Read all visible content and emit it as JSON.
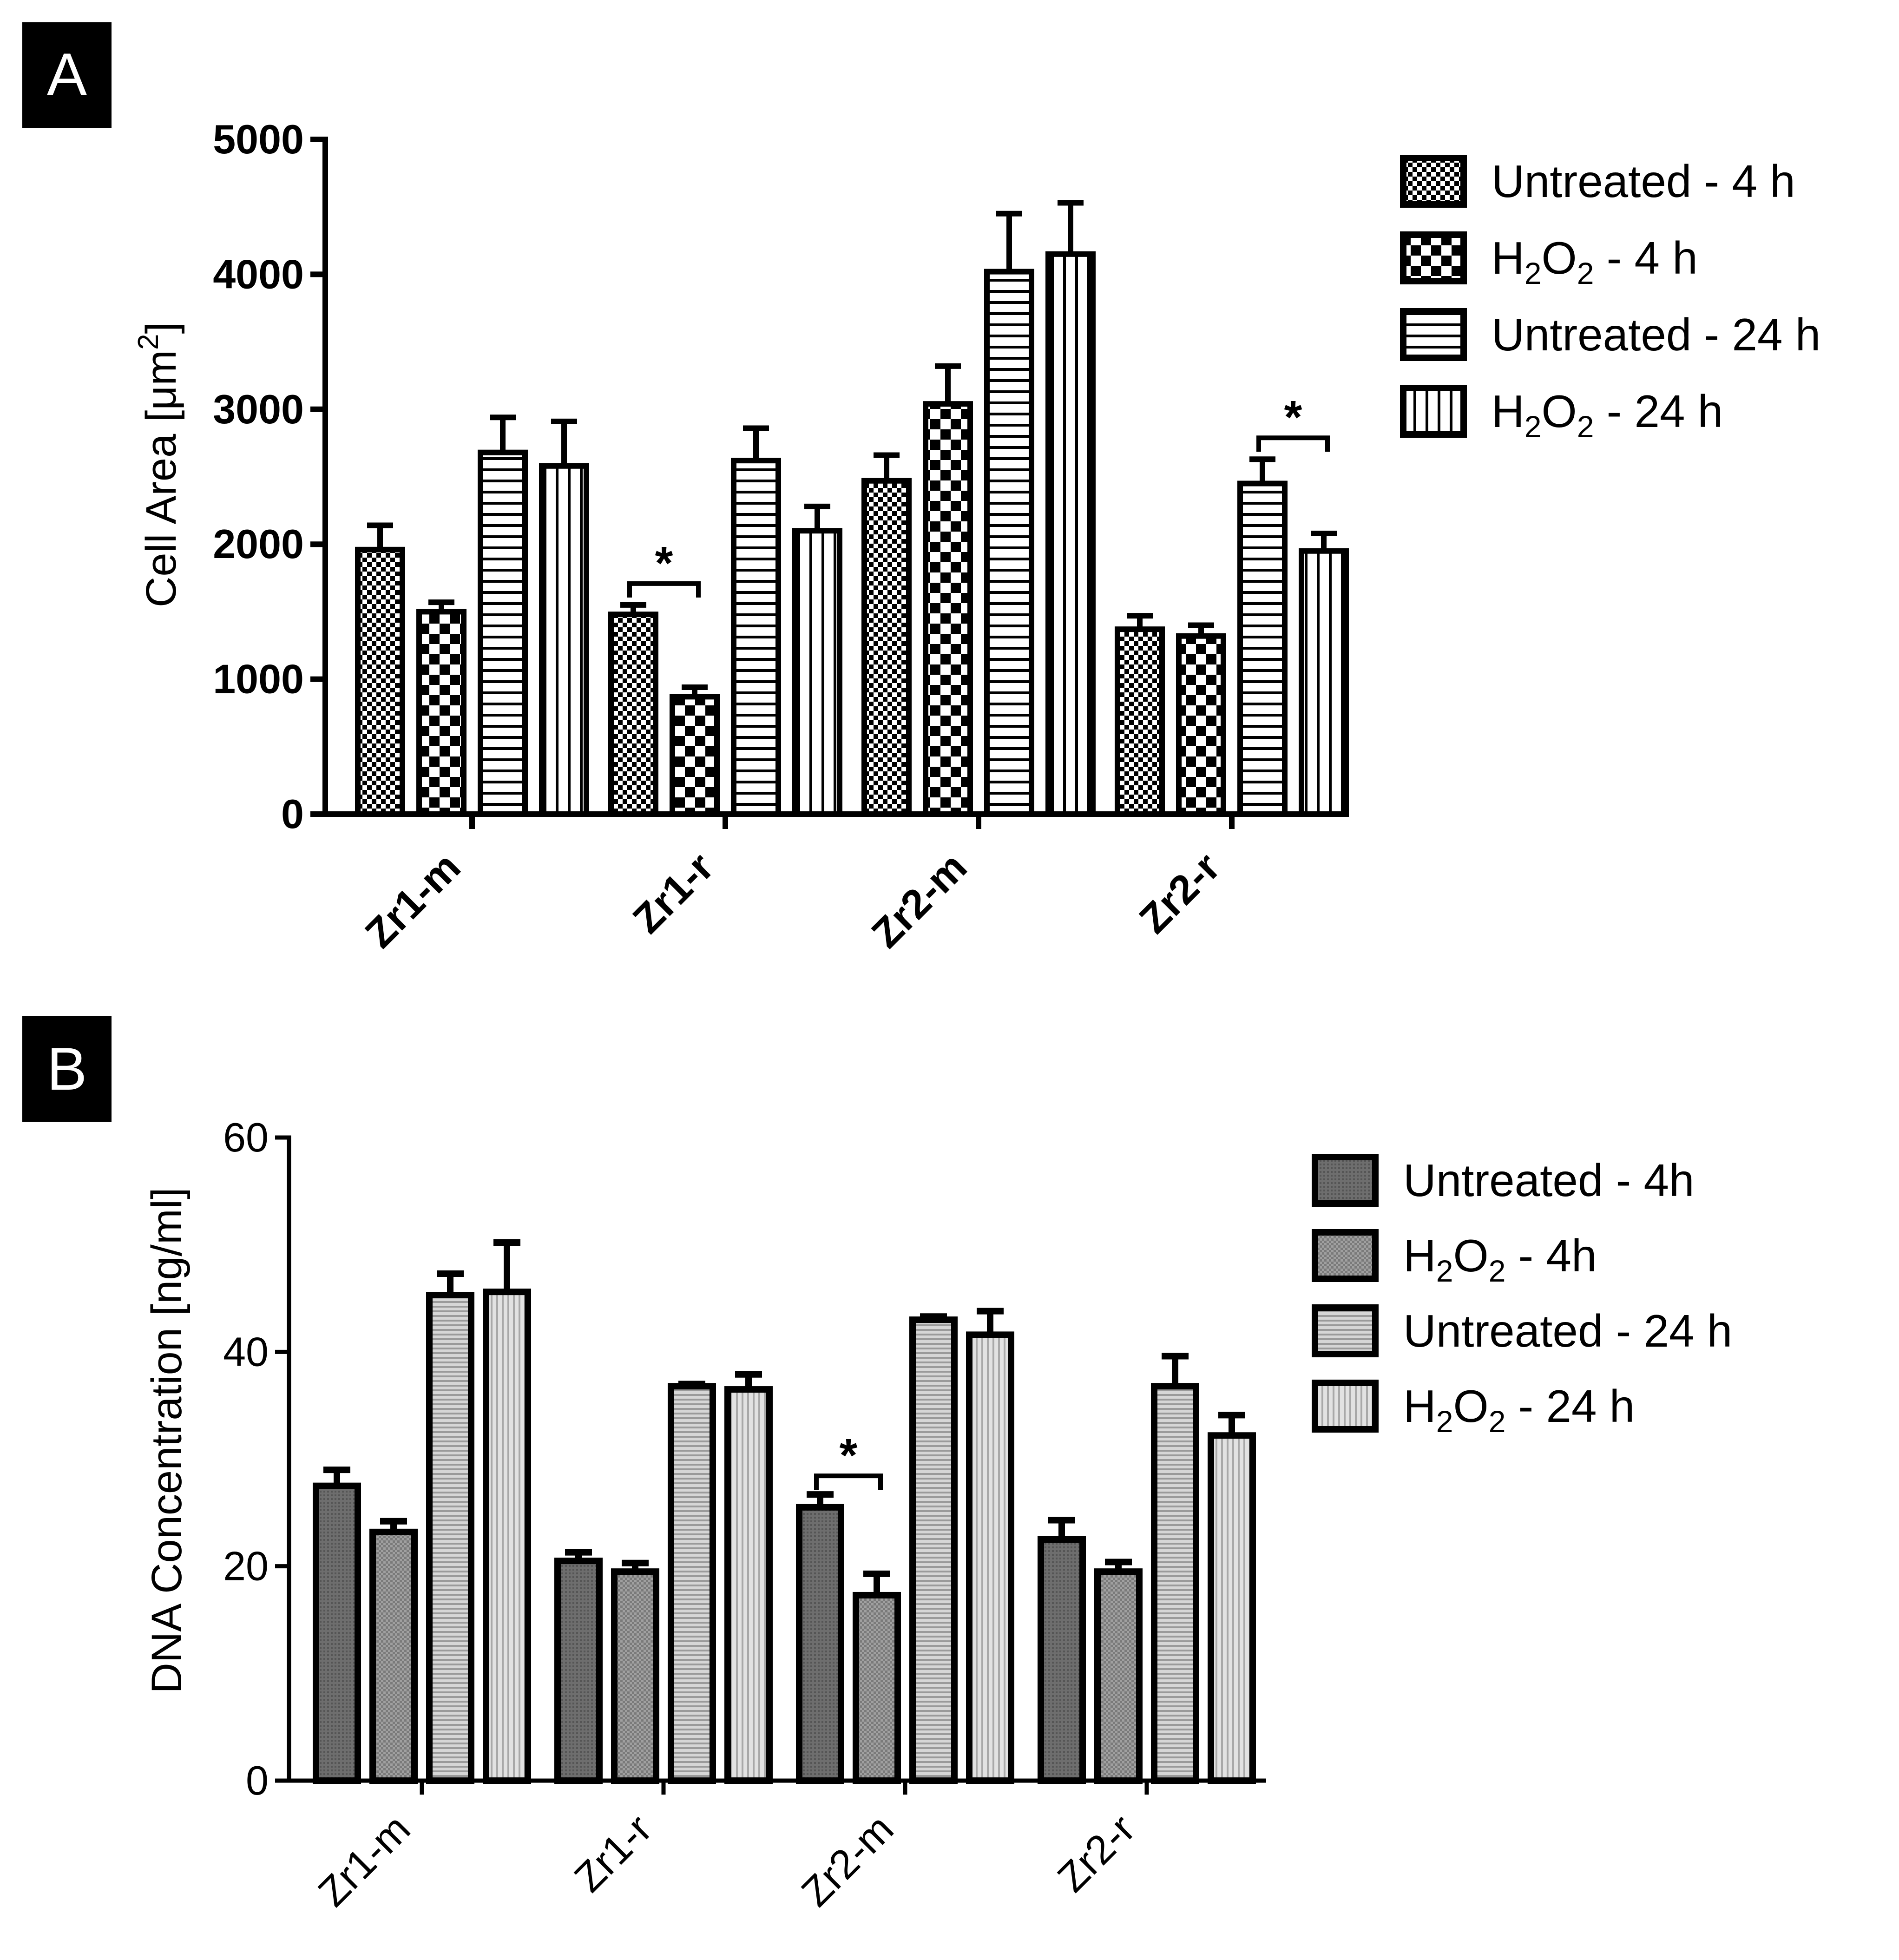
{
  "chart_data": [
    {
      "type": "bar",
      "panel": "A",
      "ylabel": "Cell Area [μm²]",
      "ylabel_main": "Cell Area [μm",
      "ylabel_sup": "2",
      "ylabel_end": "]",
      "ylim": [
        0,
        5000
      ],
      "yticks": [
        "0",
        "1000",
        "2000",
        "3000",
        "4000",
        "5000"
      ],
      "categories": [
        "Zr1-m",
        "Zr1-r",
        "Zr2-m",
        "Zr2-r"
      ],
      "series": [
        {
          "name": "Untreated - 4 h",
          "legend_main": "Untreated - 4 h",
          "legend_sub": "",
          "legend_mid": "",
          "legend_sub2": "",
          "legend_end": "",
          "pattern": "fineCheck",
          "values": [
            1960,
            1480,
            2470,
            1370
          ],
          "errors": [
            180,
            70,
            190,
            100
          ]
        },
        {
          "name": "H2O2 - 4 h",
          "legend_main": "H",
          "legend_sub": "2",
          "legend_mid": "O",
          "legend_sub2": "2",
          "legend_end": " - 4 h",
          "pattern": "check",
          "values": [
            1500,
            870,
            3040,
            1320
          ],
          "errors": [
            70,
            70,
            280,
            80
          ]
        },
        {
          "name": "Untreated - 24 h",
          "legend_main": "Untreated - 24 h",
          "legend_sub": "",
          "legend_mid": "",
          "legend_sub2": "",
          "legend_end": "",
          "pattern": "hLines",
          "values": [
            2680,
            2620,
            4020,
            2450
          ],
          "errors": [
            260,
            240,
            430,
            180
          ]
        },
        {
          "name": "H2O2 - 24 h",
          "legend_main": "H",
          "legend_sub": "2",
          "legend_mid": "O",
          "legend_sub2": "2",
          "legend_end": " - 24 h",
          "pattern": "vLines",
          "values": [
            2580,
            2100,
            4150,
            1950
          ],
          "errors": [
            330,
            180,
            380,
            130
          ]
        }
      ],
      "significance": [
        {
          "category": "Zr1-r",
          "label": "*",
          "pair": [
            0,
            1
          ]
        },
        {
          "category": "Zr2-r",
          "label": "*",
          "pair": [
            2,
            3
          ]
        }
      ]
    },
    {
      "type": "bar",
      "panel": "B",
      "ylabel": "DNA Concentration [ng/ml]",
      "ylim": [
        0,
        60
      ],
      "yticks": [
        "0",
        "20",
        "40",
        "60"
      ],
      "categories": [
        "Zr1-m",
        "Zr1-r",
        "Zr2-m",
        "Zr2-r"
      ],
      "series": [
        {
          "name": "Untreated - 4h",
          "legend_main": "Untreated - 4h",
          "legend_sub": "",
          "legend_mid": "",
          "legend_sub2": "",
          "legend_end": "",
          "pattern": "darkGray",
          "values": [
            27.5,
            20.5,
            25.5,
            22.5
          ],
          "errors": [
            1.5,
            0.8,
            1.2,
            1.8
          ]
        },
        {
          "name": "H2O2 - 4h",
          "legend_main": "H",
          "legend_sub": "2",
          "legend_mid": "O",
          "legend_sub2": "2",
          "legend_end": " - 4h",
          "pattern": "midGray",
          "values": [
            23.2,
            19.5,
            17.3,
            19.5
          ],
          "errors": [
            1.0,
            0.8,
            2.0,
            0.9
          ]
        },
        {
          "name": "Untreated - 24 h",
          "legend_main": "Untreated - 24 h",
          "legend_sub": "",
          "legend_mid": "",
          "legend_sub2": "",
          "legend_end": "",
          "pattern": "hGray",
          "values": [
            45.3,
            36.8,
            43.0,
            36.8
          ],
          "errors": [
            2.0,
            0.2,
            0.3,
            2.8
          ]
        },
        {
          "name": "H2O2 - 24 h",
          "legend_main": "H",
          "legend_sub": "2",
          "legend_mid": "O",
          "legend_sub2": "2",
          "legend_end": " - 24 h",
          "pattern": "vGray",
          "values": [
            45.6,
            36.5,
            41.6,
            32.2
          ],
          "errors": [
            4.6,
            1.4,
            2.2,
            1.9
          ]
        }
      ],
      "significance": [
        {
          "category": "Zr2-m",
          "label": "*",
          "pair": [
            0,
            1
          ]
        }
      ]
    }
  ]
}
